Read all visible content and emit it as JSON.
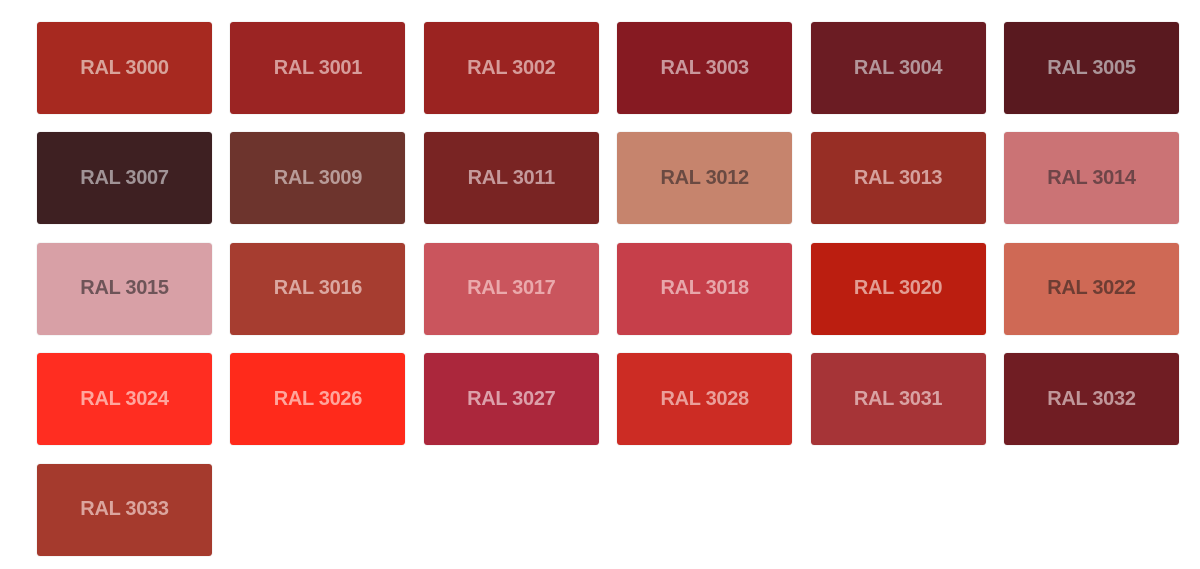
{
  "swatches": [
    {
      "label": "RAL 3000",
      "color": "#a72920",
      "text": "#d8a39a"
    },
    {
      "label": "RAL 3001",
      "color": "#9b2423",
      "text": "#d69c9a"
    },
    {
      "label": "RAL 3002",
      "color": "#9b2321",
      "text": "#d69c9a"
    },
    {
      "label": "RAL 3003",
      "color": "#861a22",
      "text": "#c9979c"
    },
    {
      "label": "RAL 3004",
      "color": "#6b1c23",
      "text": "#b3959a"
    },
    {
      "label": "RAL 3005",
      "color": "#59191f",
      "text": "#ab9599"
    },
    {
      "label": "RAL 3007",
      "color": "#3e2022",
      "text": "#a09396"
    },
    {
      "label": "RAL 3009",
      "color": "#6d342d",
      "text": "#b89b98"
    },
    {
      "label": "RAL 3011",
      "color": "#792423",
      "text": "#c5999b"
    },
    {
      "label": "RAL 3012",
      "color": "#c6846d",
      "text": "#6a4a42"
    },
    {
      "label": "RAL 3013",
      "color": "#972e25",
      "text": "#d5a09c"
    },
    {
      "label": "RAL 3014",
      "color": "#cb7375",
      "text": "#6e4548"
    },
    {
      "label": "RAL 3015",
      "color": "#d8a0a6",
      "text": "#6e5458"
    },
    {
      "label": "RAL 3016",
      "color": "#a63d30",
      "text": "#dba7a0"
    },
    {
      "label": "RAL 3017",
      "color": "#ca555d",
      "text": "#eaa9ac"
    },
    {
      "label": "RAL 3018",
      "color": "#c63f4a",
      "text": "#e7a6aa"
    },
    {
      "label": "RAL 3020",
      "color": "#bb1e10",
      "text": "#e29c92"
    },
    {
      "label": "RAL 3022",
      "color": "#cf6955",
      "text": "#6d3d33"
    },
    {
      "label": "RAL 3024",
      "color": "#ff2d21",
      "text": "#ffa69e"
    },
    {
      "label": "RAL 3026",
      "color": "#ff2a1b",
      "text": "#ffa59c"
    },
    {
      "label": "RAL 3027",
      "color": "#ab273c",
      "text": "#dca0aa"
    },
    {
      "label": "RAL 3028",
      "color": "#cc2c24",
      "text": "#ea9f9a"
    },
    {
      "label": "RAL 3031",
      "color": "#a63437",
      "text": "#d9a2a3"
    },
    {
      "label": "RAL 3032",
      "color": "#701d23",
      "text": "#c0979a"
    },
    {
      "label": "RAL 3033",
      "color": "#a53a2d",
      "text": "#dba59e"
    }
  ]
}
